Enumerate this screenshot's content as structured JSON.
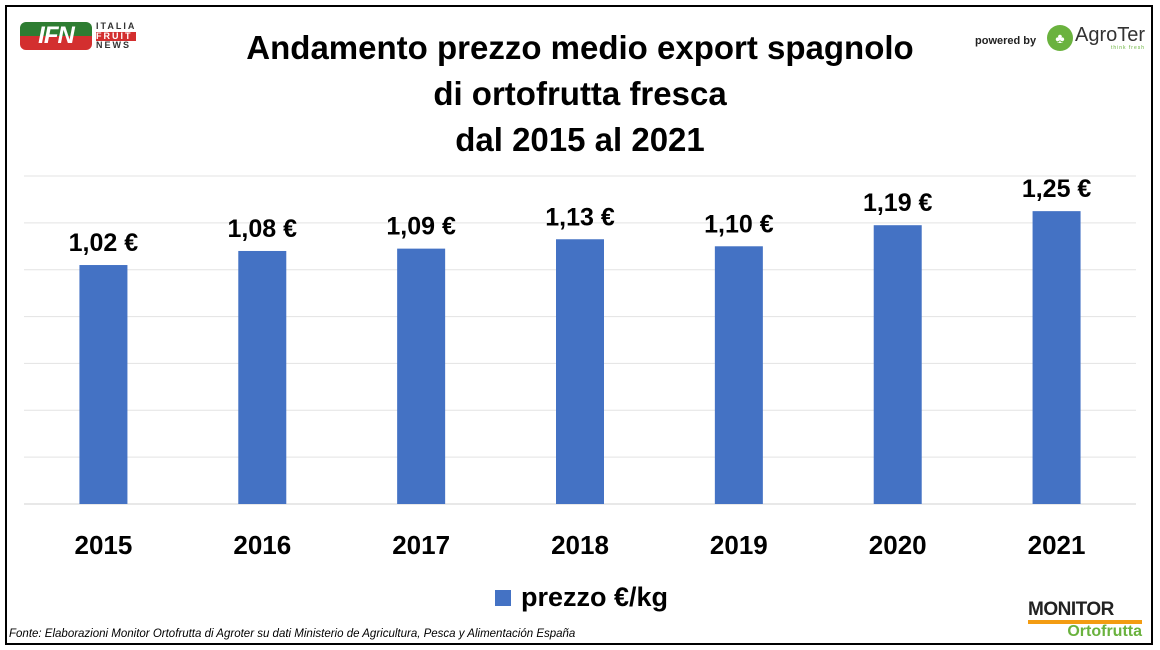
{
  "header": {
    "title_lines": [
      "Andamento prezzo medio export spagnolo",
      "di ortofrutta fresca",
      "dal 2015 al 2021"
    ],
    "ifn_logo": {
      "text": "IFN",
      "words": [
        "ITALIA",
        "FRUIT",
        "NEWS"
      ]
    },
    "powered_by": "powered by",
    "agroter_logo": {
      "text": "AgroTer",
      "tagline": "think fresh"
    }
  },
  "footer": {
    "source": "Fonte: Elaborazioni Monitor Ortofrutta di Agroter su dati Ministerio de Agricultura, Pesca y Alimentación España",
    "monitor_logo": {
      "top": "MONITOR",
      "bottom": "Ortofrutta"
    }
  },
  "chart_data": {
    "type": "bar",
    "title": "Andamento prezzo medio export spagnolo di ortofrutta fresca dal 2015 al 2021",
    "categories": [
      "2015",
      "2016",
      "2017",
      "2018",
      "2019",
      "2020",
      "2021"
    ],
    "series": [
      {
        "name": "prezzo €/kg",
        "values": [
          1.02,
          1.08,
          1.09,
          1.13,
          1.1,
          1.19,
          1.25
        ],
        "color": "#4472c4"
      }
    ],
    "data_labels": [
      "1,02 €",
      "1,08 €",
      "1,09 €",
      "1,13 €",
      "1,10 €",
      "1,19 €",
      "1,25 €"
    ],
    "xlabel": "",
    "ylabel": "",
    "ylim": [
      0,
      1.4
    ],
    "ytick_step": 0.2,
    "grid": true,
    "legend": "bottom-center"
  }
}
